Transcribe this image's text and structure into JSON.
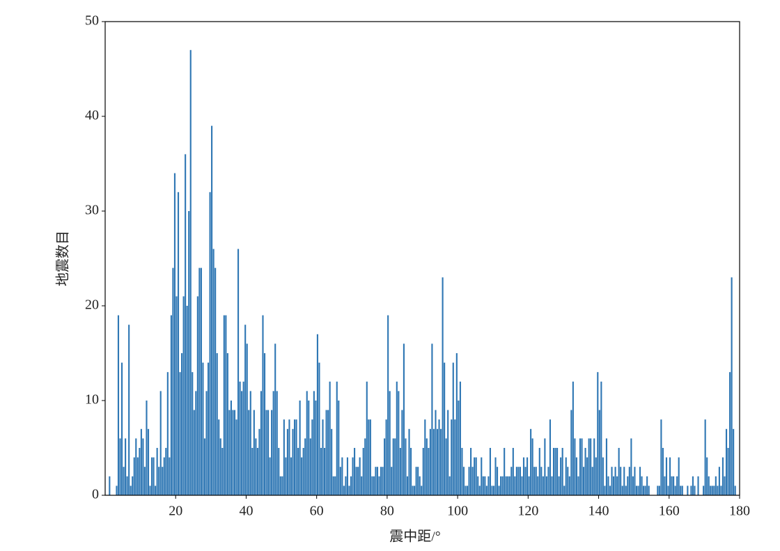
{
  "chart_data": {
    "type": "histogram",
    "xlabel": "震中距/°",
    "ylabel": "地震数目",
    "color": "#2f77b4",
    "xlim": [
      0,
      180
    ],
    "xticks": [
      20,
      40,
      60,
      80,
      100,
      120,
      140,
      160,
      180
    ],
    "ylim": [
      0,
      50
    ],
    "yticks": [
      0,
      10,
      20,
      30,
      40,
      50
    ],
    "bins": [
      0,
      0.5,
      1,
      1.5,
      2,
      2.5,
      3,
      3.5,
      4,
      4.5,
      5,
      5.5,
      6,
      6.5,
      7,
      7.5,
      8,
      8.5,
      9,
      9.5,
      10,
      10.5,
      11,
      11.5,
      12,
      12.5,
      13,
      13.5,
      14,
      14.5,
      15,
      15.5,
      16,
      16.5,
      17,
      17.5,
      18,
      18.5,
      19,
      19.5,
      20,
      20.5,
      21,
      21.5,
      22,
      22.5,
      23,
      23.5,
      24,
      24.5,
      25,
      25.5,
      26,
      26.5,
      27,
      27.5,
      28,
      28.5,
      29,
      29.5,
      30,
      30.5,
      31,
      31.5,
      32,
      32.5,
      33,
      33.5,
      34,
      34.5,
      35,
      35.5,
      36,
      36.5,
      37,
      37.5,
      38,
      38.5,
      39,
      39.5,
      40,
      40.5,
      41,
      41.5,
      42,
      42.5,
      43,
      43.5,
      44,
      44.5,
      45,
      45.5,
      46,
      46.5,
      47,
      47.5,
      48,
      48.5,
      49,
      49.5,
      50,
      50.5,
      51,
      51.5,
      52,
      52.5,
      53,
      53.5,
      54,
      54.5,
      55,
      55.5,
      56,
      56.5,
      57,
      57.5,
      58,
      58.5,
      59,
      59.5,
      60,
      60.5,
      61,
      61.5,
      62,
      62.5,
      63,
      63.5,
      64,
      64.5,
      65,
      65.5,
      66,
      66.5,
      67,
      67.5,
      68,
      68.5,
      69,
      69.5,
      70,
      70.5,
      71,
      71.5,
      72,
      72.5,
      73,
      73.5,
      74,
      74.5,
      75,
      75.5,
      76,
      76.5,
      77,
      77.5,
      78,
      78.5,
      79,
      79.5,
      80,
      80.5,
      81,
      81.5,
      82,
      82.5,
      83,
      83.5,
      84,
      84.5,
      85,
      85.5,
      86,
      86.5,
      87,
      87.5,
      88,
      88.5,
      89,
      89.5,
      90,
      90.5,
      91,
      91.5,
      92,
      92.5,
      93,
      93.5,
      94,
      94.5,
      95,
      95.5,
      96,
      96.5,
      97,
      97.5,
      98,
      98.5,
      99,
      99.5,
      100,
      100.5,
      101,
      101.5,
      102,
      102.5,
      103,
      103.5,
      104,
      104.5,
      105,
      105.5,
      106,
      106.5,
      107,
      107.5,
      108,
      108.5,
      109,
      109.5,
      110,
      110.5,
      111,
      111.5,
      112,
      112.5,
      113,
      113.5,
      114,
      114.5,
      115,
      115.5,
      116,
      116.5,
      117,
      117.5,
      118,
      118.5,
      119,
      119.5,
      120,
      120.5,
      121,
      121.5,
      122,
      122.5,
      123,
      123.5,
      124,
      124.5,
      125,
      125.5,
      126,
      126.5,
      127,
      127.5,
      128,
      128.5,
      129,
      129.5,
      130,
      130.5,
      131,
      131.5,
      132,
      132.5,
      133,
      133.5,
      134,
      134.5,
      135,
      135.5,
      136,
      136.5,
      137,
      137.5,
      138,
      138.5,
      139,
      139.5,
      140,
      140.5,
      141,
      141.5,
      142,
      142.5,
      143,
      143.5,
      144,
      144.5,
      145,
      145.5,
      146,
      146.5,
      147,
      147.5,
      148,
      148.5,
      149,
      149.5,
      150,
      150.5,
      151,
      151.5,
      152,
      152.5,
      153,
      153.5,
      154,
      154.5,
      155,
      155.5,
      156,
      156.5,
      157,
      157.5,
      158,
      158.5,
      159,
      159.5,
      160,
      160.5,
      161,
      161.5,
      162,
      162.5,
      163,
      163.5,
      164,
      164.5,
      165,
      165.5,
      166,
      166.5,
      167,
      167.5,
      168,
      168.5,
      169,
      169.5,
      170,
      170.5,
      171,
      171.5,
      172,
      172.5,
      173,
      173.5,
      174,
      174.5,
      175,
      175.5,
      176,
      176.5,
      177,
      177.5,
      178,
      178.5,
      179,
      179.5,
      180
    ],
    "counts": [
      0,
      0,
      2,
      0,
      0,
      0,
      1,
      19,
      6,
      14,
      3,
      6,
      2,
      18,
      1,
      2,
      4,
      6,
      4,
      5,
      7,
      6,
      3,
      10,
      7,
      1,
      4,
      4,
      1,
      5,
      3,
      11,
      3,
      4,
      5,
      13,
      4,
      19,
      24,
      34,
      21,
      32,
      13,
      15,
      21,
      36,
      20,
      30,
      47,
      13,
      9,
      11,
      21,
      24,
      24,
      14,
      6,
      11,
      14,
      32,
      39,
      26,
      24,
      15,
      8,
      6,
      5,
      19,
      19,
      15,
      9,
      10,
      9,
      9,
      8,
      26,
      12,
      11,
      12,
      18,
      16,
      9,
      11,
      5,
      9,
      6,
      5,
      7,
      11,
      19,
      15,
      9,
      9,
      4,
      9,
      11,
      16,
      11,
      5,
      2,
      2,
      8,
      4,
      7,
      8,
      4,
      7,
      8,
      8,
      5,
      10,
      4,
      5,
      6,
      11,
      10,
      6,
      8,
      11,
      10,
      17,
      14,
      5,
      8,
      5,
      9,
      9,
      12,
      7,
      2,
      2,
      12,
      10,
      3,
      4,
      1,
      2,
      4,
      1,
      2,
      4,
      5,
      3,
      3,
      4,
      2,
      5,
      6,
      12,
      8,
      8,
      2,
      2,
      3,
      3,
      2,
      3,
      3,
      6,
      8,
      19,
      11,
      3,
      6,
      6,
      12,
      11,
      5,
      9,
      16,
      6,
      2,
      7,
      5,
      1,
      1,
      3,
      3,
      2,
      1,
      5,
      8,
      6,
      5,
      7,
      16,
      7,
      9,
      7,
      8,
      7,
      23,
      14,
      6,
      9,
      2,
      8,
      14,
      8,
      15,
      10,
      12,
      5,
      3,
      1,
      1,
      3,
      5,
      3,
      4,
      4,
      2,
      1,
      4,
      2,
      2,
      1,
      2,
      5,
      1,
      1,
      4,
      3,
      1,
      2,
      2,
      5,
      2,
      2,
      2,
      3,
      5,
      2,
      3,
      3,
      3,
      2,
      4,
      3,
      4,
      2,
      7,
      6,
      3,
      3,
      2,
      5,
      3,
      2,
      6,
      2,
      3,
      8,
      2,
      5,
      5,
      5,
      2,
      4,
      5,
      1,
      4,
      3,
      2,
      9,
      12,
      6,
      4,
      2,
      6,
      6,
      3,
      5,
      4,
      6,
      6,
      3,
      6,
      4,
      13,
      9,
      12,
      4,
      1,
      6,
      2,
      1,
      3,
      2,
      3,
      2,
      5,
      3,
      1,
      3,
      1,
      2,
      3,
      6,
      2,
      3,
      1,
      1,
      3,
      2,
      1,
      1,
      2,
      1,
      0,
      0,
      0,
      0,
      1,
      1,
      8,
      5,
      2,
      4,
      1,
      4,
      2,
      2,
      1,
      2,
      4,
      1,
      1,
      0,
      0,
      1,
      0,
      1,
      2,
      1,
      0,
      2,
      0,
      0,
      1,
      8,
      4,
      2,
      1,
      1,
      1,
      2,
      1,
      3,
      1,
      4,
      2,
      7,
      5,
      13,
      23,
      7,
      1,
      0,
      0
    ]
  }
}
